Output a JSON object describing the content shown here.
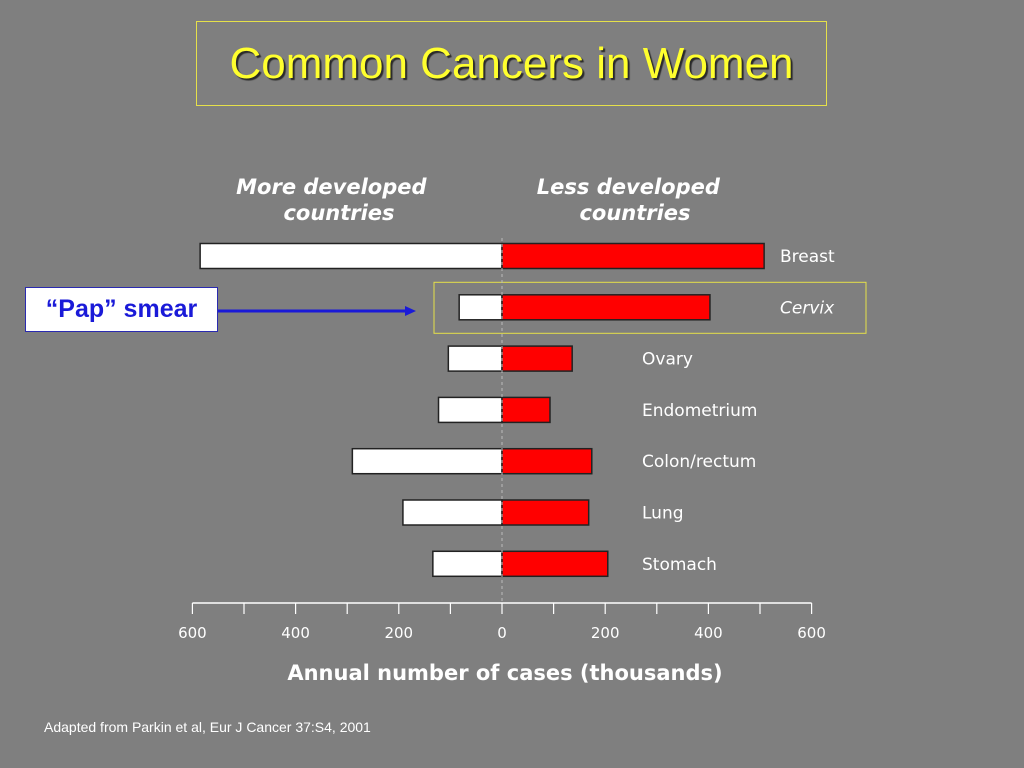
{
  "title": "Common Cancers in Women",
  "callout": "“Pap” smear",
  "source": "Adapted from Parkin et al, Eur J Cancer 37:S4, 2001",
  "colors": {
    "background": "#7f7f7f",
    "title": "#ffff2e",
    "less_developed_bar": "#ff0000",
    "more_developed_bar": "#ffffff",
    "arrow": "#1a1ad8",
    "highlight_box": "#e5e04a"
  },
  "chart_data": {
    "type": "bar",
    "orientation": "horizontal",
    "layout": "back-to-back",
    "categories": [
      "Breast",
      "Cervix",
      "Ovary",
      "Endometrium",
      "Colon/rectum",
      "Lung",
      "Stomach"
    ],
    "highlight_category": "Cervix",
    "series": [
      {
        "name": "More developed countries",
        "values": [
          585,
          83,
          104,
          123,
          290,
          192,
          134
        ]
      },
      {
        "name": "Less developed countries",
        "values": [
          508,
          403,
          136,
          93,
          174,
          168,
          205
        ]
      }
    ],
    "group_labels": [
      "More developed countries",
      "Less developed countries"
    ],
    "xlabel": "Annual number of cases (thousands)",
    "xticks": [
      -600,
      -400,
      -200,
      0,
      200,
      400,
      600
    ],
    "xtick_labels": [
      "600",
      "400",
      "200",
      "0",
      "200",
      "400",
      "600"
    ],
    "xlim": [
      -600,
      600
    ],
    "grid": false
  }
}
